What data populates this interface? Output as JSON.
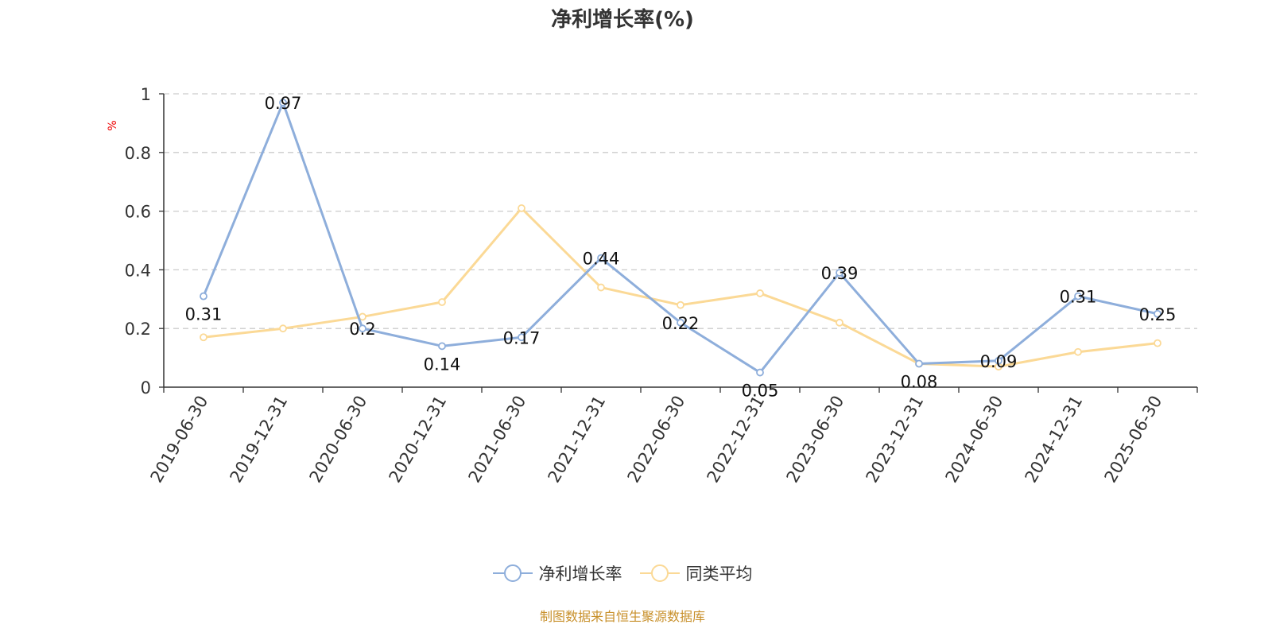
{
  "colors": {
    "series1": "#8eaedb",
    "series2": "#fbd996",
    "ylabel": "#ee0000",
    "source": "#c8902b"
  },
  "chart_data": {
    "type": "line",
    "title": "净利增长率(%)",
    "ylabel": "%",
    "xlabel": "",
    "ylim": [
      0,
      1
    ],
    "yticks": [
      "0",
      "0.2",
      "0.4",
      "0.6",
      "0.8",
      "1"
    ],
    "grid": true,
    "legend_position": "bottom-center",
    "categories": [
      "2019-06-30",
      "2019-12-31",
      "2020-06-30",
      "2020-12-31",
      "2021-06-30",
      "2021-12-31",
      "2022-06-30",
      "2022-12-31",
      "2023-06-30",
      "2023-12-31",
      "2024-06-30",
      "2024-12-31",
      "2025-06-30"
    ],
    "series": [
      {
        "name": "净利增长率",
        "values": [
          0.31,
          0.97,
          0.2,
          0.14,
          0.17,
          0.44,
          0.22,
          0.05,
          0.39,
          0.08,
          0.09,
          0.31,
          0.25
        ],
        "labels": [
          "0.31",
          "0.97",
          "0.2",
          "0.14",
          "0.17",
          "0.44",
          "0.22",
          "0.05",
          "0.39",
          "0.08",
          "0.09",
          "0.31",
          "0.25"
        ]
      },
      {
        "name": "同类平均",
        "values": [
          0.17,
          0.2,
          0.24,
          0.29,
          0.61,
          0.34,
          0.28,
          0.32,
          0.22,
          0.08,
          0.07,
          0.12,
          0.15
        ]
      }
    ]
  },
  "source": "制图数据来自恒生聚源数据库"
}
